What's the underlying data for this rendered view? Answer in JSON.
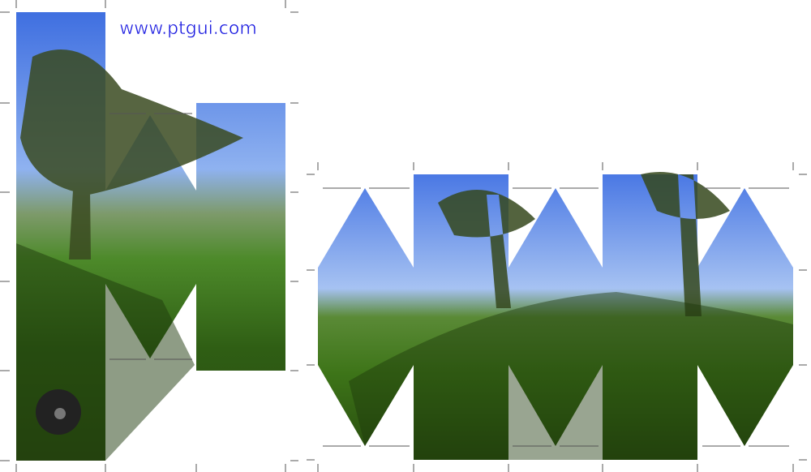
{
  "link": "www.ptgui.com"
}
